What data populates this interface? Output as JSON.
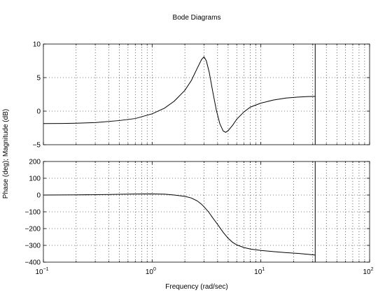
{
  "chart_data": {
    "type": "line",
    "title": "Bode Diagrams",
    "xlabel": "Frequency (rad/sec)",
    "ylabel": "Phase (deg); Magnitude (dB)",
    "x_scale": "log",
    "xlim": [
      0.1,
      100
    ],
    "x_ticks": [
      {
        "value": 0.1,
        "base": "10",
        "exp": "−1"
      },
      {
        "value": 1,
        "base": "10",
        "exp": "0"
      },
      {
        "value": 10,
        "base": "10",
        "exp": "1"
      },
      {
        "value": 100,
        "base": "10",
        "exp": "2"
      }
    ],
    "grid": true,
    "vertical_marker_x": 31.6,
    "panels": [
      {
        "name": "magnitude",
        "ylim": [
          -5,
          10
        ],
        "y_ticks": [
          "10",
          "5",
          "0",
          "−5"
        ],
        "y_tick_values": [
          10,
          5,
          0,
          -5
        ],
        "series": [
          {
            "x": [
              0.1,
              0.15,
              0.2,
              0.3,
              0.5,
              0.7,
              1.0,
              1.3,
              1.6,
              2.0,
              2.3,
              2.6,
              2.85,
              3.0,
              3.15,
              3.35,
              3.6,
              3.9,
              4.2,
              4.5,
              4.75,
              5.0,
              5.5,
              6.0,
              7.0,
              8.0,
              10.0,
              13.0,
              17.0,
              22.0,
              27.0,
              31.6
            ],
            "y": [
              -1.85,
              -1.83,
              -1.8,
              -1.7,
              -1.4,
              -1.1,
              -0.4,
              0.45,
              1.5,
              3.1,
              4.6,
              6.4,
              7.7,
              8.1,
              7.5,
              5.8,
              3.0,
              0.1,
              -1.9,
              -2.95,
              -3.15,
              -2.9,
              -2.1,
              -1.2,
              -0.1,
              0.6,
              1.2,
              1.65,
              1.95,
              2.1,
              2.17,
              2.2
            ]
          }
        ]
      },
      {
        "name": "phase",
        "ylim": [
          -400,
          200
        ],
        "y_ticks": [
          "200",
          "100",
          "0",
          "−100",
          "−200",
          "−300",
          "−400"
        ],
        "y_tick_values": [
          200,
          100,
          0,
          -100,
          -200,
          -300,
          -400
        ],
        "series": [
          {
            "x": [
              0.1,
              0.2,
              0.4,
              0.7,
              1.0,
              1.3,
              1.6,
              2.0,
              2.3,
              2.6,
              2.85,
              3.0,
              3.3,
              3.6,
              4.0,
              4.5,
              5.0,
              5.5,
              6.0,
              7.0,
              8.0,
              10.0,
              13.0,
              17.0,
              22.0,
              27.0,
              31.6
            ],
            "y": [
              0,
              1,
              3,
              6,
              7,
              5,
              0,
              -8,
              -18,
              -35,
              -55,
              -70,
              -100,
              -135,
              -175,
              -222,
              -258,
              -282,
              -297,
              -313,
              -322,
              -330,
              -337,
              -343,
              -348,
              -353,
              -358
            ]
          }
        ]
      }
    ]
  }
}
